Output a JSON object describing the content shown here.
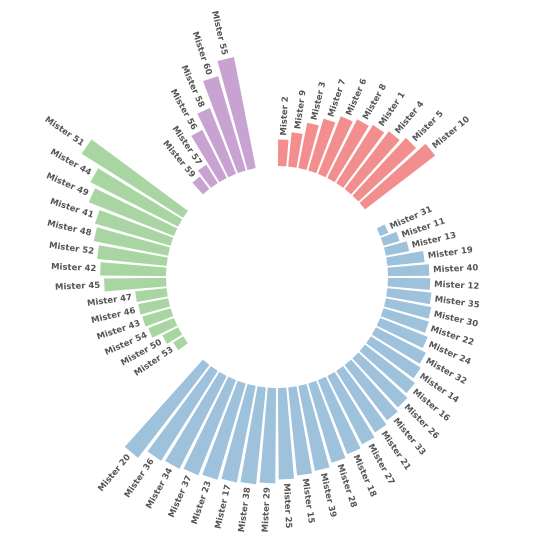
{
  "chart_data": {
    "type": "bar",
    "layout": "circular",
    "title": "",
    "groups": [
      {
        "name": "",
        "color": "#F28E8E",
        "items": [
          {
            "label": "Mister 2",
            "value": 27
          },
          {
            "label": "Mister 9",
            "value": 35
          },
          {
            "label": "Mister 3",
            "value": 47
          },
          {
            "label": "Mister 7",
            "value": 55
          },
          {
            "label": "Mister 6",
            "value": 63
          },
          {
            "label": "Mister 8",
            "value": 67
          },
          {
            "label": "Mister 1",
            "value": 70
          },
          {
            "label": "Mister 4",
            "value": 74
          },
          {
            "label": "Mister 5",
            "value": 80
          },
          {
            "label": "Mister 10",
            "value": 90
          }
        ]
      },
      {
        "name": "",
        "color": "#9EC1DC",
        "items": [
          {
            "label": "Mister 31",
            "value": 9
          },
          {
            "label": "Mister 11",
            "value": 17
          },
          {
            "label": "Mister 13",
            "value": 24
          },
          {
            "label": "Mister 19",
            "value": 38
          },
          {
            "label": "Mister 40",
            "value": 42
          },
          {
            "label": "Mister 12",
            "value": 43
          },
          {
            "label": "Mister 35",
            "value": 45
          },
          {
            "label": "Mister 30",
            "value": 47
          },
          {
            "label": "Mister 22",
            "value": 48
          },
          {
            "label": "Mister 24",
            "value": 52
          },
          {
            "label": "Mister 32",
            "value": 57
          },
          {
            "label": "Mister 14",
            "value": 60
          },
          {
            "label": "Mister 16",
            "value": 64
          },
          {
            "label": "Mister 26",
            "value": 68
          },
          {
            "label": "Mister 33",
            "value": 71
          },
          {
            "label": "Mister 21",
            "value": 74
          },
          {
            "label": "Mister 27",
            "value": 78
          },
          {
            "label": "Mister 18",
            "value": 81
          },
          {
            "label": "Mister 28",
            "value": 84
          },
          {
            "label": "Mister 39",
            "value": 88
          },
          {
            "label": "Mister 15",
            "value": 90
          },
          {
            "label": "Mister 25",
            "value": 93
          },
          {
            "label": "Mister 29",
            "value": 97
          },
          {
            "label": "Mister 38",
            "value": 99
          },
          {
            "label": "Mister 17",
            "value": 100
          },
          {
            "label": "Mister 23",
            "value": 102
          },
          {
            "label": "Mister 37",
            "value": 104
          },
          {
            "label": "Mister 34",
            "value": 106
          },
          {
            "label": "Mister 36",
            "value": 108
          },
          {
            "label": "Mister 20",
            "value": 119
          }
        ]
      },
      {
        "name": "",
        "color": "#A8D5A2",
        "items": [
          {
            "label": "Mister 53",
            "value": 12
          },
          {
            "label": "Mister 50",
            "value": 18
          },
          {
            "label": "Mister 54",
            "value": 28
          },
          {
            "label": "Mister 43",
            "value": 30
          },
          {
            "label": "Mister 46",
            "value": 31
          },
          {
            "label": "Mister 47",
            "value": 32
          },
          {
            "label": "Mister 45",
            "value": 63
          },
          {
            "label": "Mister 42",
            "value": 67
          },
          {
            "label": "Mister 52",
            "value": 71
          },
          {
            "label": "Mister 48",
            "value": 77
          },
          {
            "label": "Mister 41",
            "value": 80
          },
          {
            "label": "Mister 49",
            "value": 93
          },
          {
            "label": "Mister 44",
            "value": 100
          },
          {
            "label": "Mister 51",
            "value": 122
          }
        ]
      },
      {
        "name": "",
        "color": "#C8A2D0",
        "items": [
          {
            "label": "Mister 59",
            "value": 16
          },
          {
            "label": "Mister 57",
            "value": 22
          },
          {
            "label": "Mister 56",
            "value": 55
          },
          {
            "label": "Mister 58",
            "value": 72
          },
          {
            "label": "Mister 60",
            "value": 100
          },
          {
            "label": "Mister 55",
            "value": 115
          }
        ]
      }
    ]
  }
}
